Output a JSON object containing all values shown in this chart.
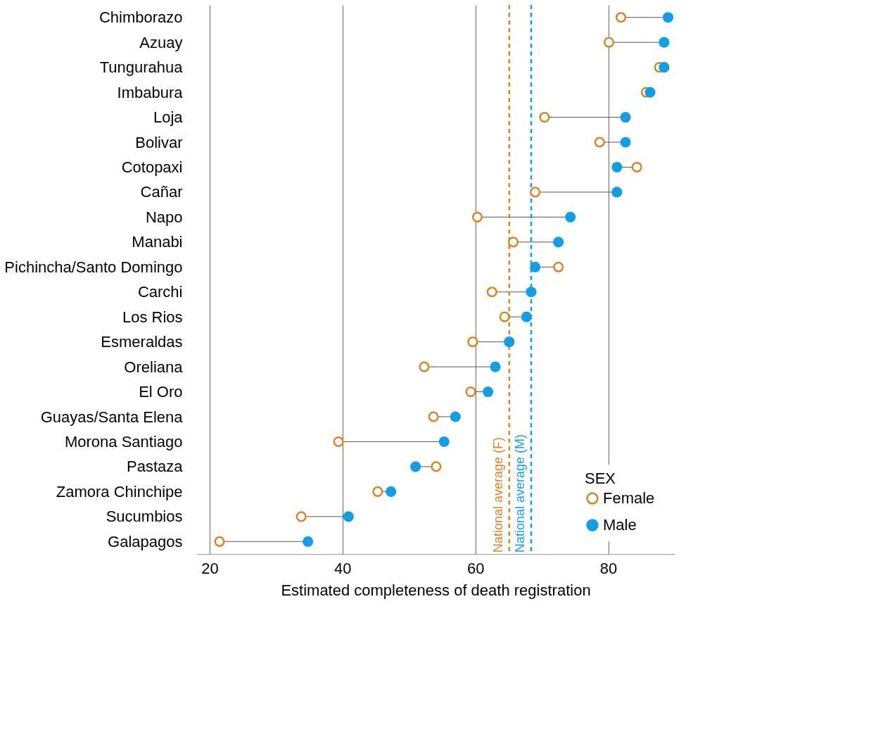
{
  "chart_data": {
    "type": "scatter",
    "orientation": "horizontal",
    "xlabel": "Estimated completeness of death registration",
    "legend_title": "SEX",
    "legend": "bottom right",
    "grid": "x",
    "marker": "circle",
    "categories": [
      "Chimborazo",
      "Azuay",
      "Tungurahua",
      "Imbabura",
      "Loja",
      "Bolivar",
      "Cotopaxi",
      "Cañar",
      "Napo",
      "Manabi",
      "Pichincha/Santo Domingo",
      "Carchi",
      "Los Rios",
      "Esmeraldas",
      "Oreliana",
      "El Oro",
      "Guayas/Santa Elena",
      "Morona Santiago",
      "Pastaza",
      "Zamora Chinchipe",
      "Sucumbios",
      "Galapagos"
    ],
    "series": [
      {
        "name": "Female",
        "color": "#d98324",
        "values": [
          81.9,
          80.1,
          87.7,
          85.7,
          70.4,
          78.7,
          84.3,
          69.0,
          60.3,
          65.7,
          72.5,
          62.5,
          64.4,
          59.6,
          52.3,
          59.3,
          53.7,
          39.4,
          54.1,
          45.3,
          33.8,
          21.5
        ]
      },
      {
        "name": "Male",
        "color": "#129ee6",
        "values": [
          89.0,
          88.4,
          88.4,
          86.3,
          82.6,
          82.6,
          81.3,
          81.3,
          74.3,
          72.5,
          69.0,
          68.4,
          67.7,
          65.1,
          63.0,
          61.9,
          57.0,
          55.3,
          51.0,
          47.3,
          40.9,
          34.8
        ]
      }
    ],
    "xlim": [
      18,
      90
    ],
    "xticks": [
      20,
      40,
      60,
      80
    ],
    "ref_lines": [
      {
        "axis": "x",
        "value": 65.1,
        "label": "National average (F)",
        "color": "#d98324",
        "line_style": "dashed"
      },
      {
        "axis": "x",
        "value": 68.4,
        "label": "National average (M)",
        "color": "#129ee6",
        "line_style": "dashed"
      }
    ]
  }
}
